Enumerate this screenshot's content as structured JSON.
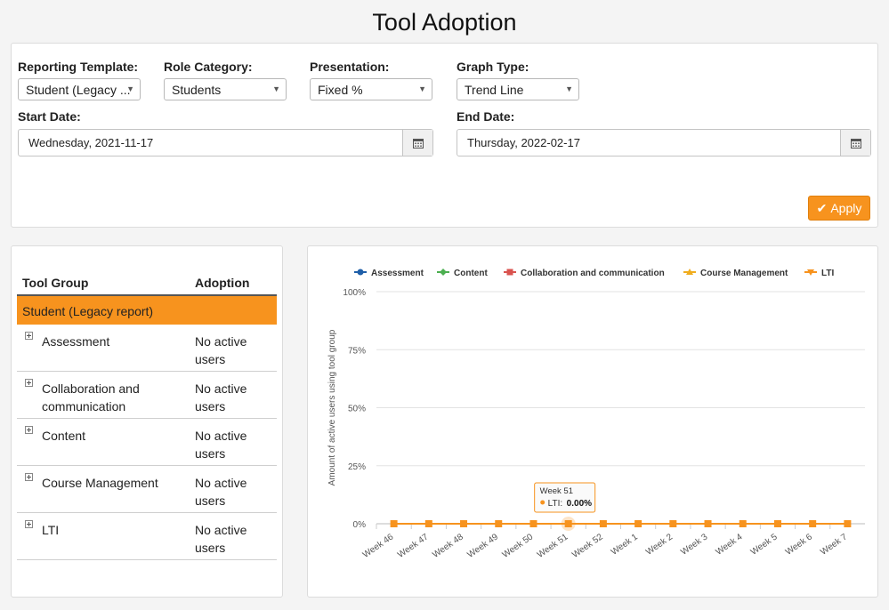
{
  "page": {
    "title": "Tool Adoption"
  },
  "filters": {
    "reporting_template": {
      "label": "Reporting Template:",
      "value": "Student (Legacy ..."
    },
    "role_category": {
      "label": "Role Category:",
      "value": "Students"
    },
    "presentation": {
      "label": "Presentation:",
      "value": "Fixed %"
    },
    "graph_type": {
      "label": "Graph Type:",
      "value": "Trend Line"
    },
    "start_date": {
      "label": "Start Date:",
      "value": "Wednesday, 2021-11-17"
    },
    "end_date": {
      "label": "End Date:",
      "value": "Thursday, 2022-02-17"
    },
    "apply_label": "Apply"
  },
  "table": {
    "headers": {
      "group": "Tool Group",
      "adoption": "Adoption"
    },
    "group_row": "Student (Legacy report)",
    "rows": [
      {
        "name": "Assessment",
        "value": "No active users"
      },
      {
        "name": "Collaboration and communication",
        "value": "No active users"
      },
      {
        "name": "Content",
        "value": "No active users"
      },
      {
        "name": "Course Management",
        "value": "No active users"
      },
      {
        "name": "LTI",
        "value": "No active users"
      }
    ]
  },
  "chart_data": {
    "type": "line",
    "ylabel": "Amount of active users using tool group",
    "ylim": [
      0,
      100
    ],
    "yticks": [
      "0%",
      "25%",
      "50%",
      "75%",
      "100%"
    ],
    "categories": [
      "Week 46",
      "Week 47",
      "Week 48",
      "Week 49",
      "Week 50",
      "Week 51",
      "Week 52",
      "Week 1",
      "Week 2",
      "Week 3",
      "Week 4",
      "Week 5",
      "Week 6",
      "Week 7"
    ],
    "legend_position": "top",
    "series": [
      {
        "name": "Assessment",
        "color": "#1f5fa8",
        "marker": "circle",
        "values": [
          0,
          0,
          0,
          0,
          0,
          0,
          0,
          0,
          0,
          0,
          0,
          0,
          0,
          0
        ]
      },
      {
        "name": "Content",
        "color": "#4caf50",
        "marker": "diamond",
        "values": [
          0,
          0,
          0,
          0,
          0,
          0,
          0,
          0,
          0,
          0,
          0,
          0,
          0,
          0
        ]
      },
      {
        "name": "Collaboration and communication",
        "color": "#d9534f",
        "marker": "square",
        "values": [
          0,
          0,
          0,
          0,
          0,
          0,
          0,
          0,
          0,
          0,
          0,
          0,
          0,
          0
        ]
      },
      {
        "name": "Course Management",
        "color": "#f0ad1e",
        "marker": "triangle",
        "values": [
          0,
          0,
          0,
          0,
          0,
          0,
          0,
          0,
          0,
          0,
          0,
          0,
          0,
          0
        ]
      },
      {
        "name": "LTI",
        "color": "#f7931e",
        "marker": "triangle-down",
        "values": [
          0,
          0,
          0,
          0,
          0,
          0,
          0,
          0,
          0,
          0,
          0,
          0,
          0,
          0
        ]
      }
    ],
    "tooltip": {
      "category": "Week 51",
      "series": "LTI",
      "series_label": "LTI:",
      "value": "0.00%"
    }
  }
}
